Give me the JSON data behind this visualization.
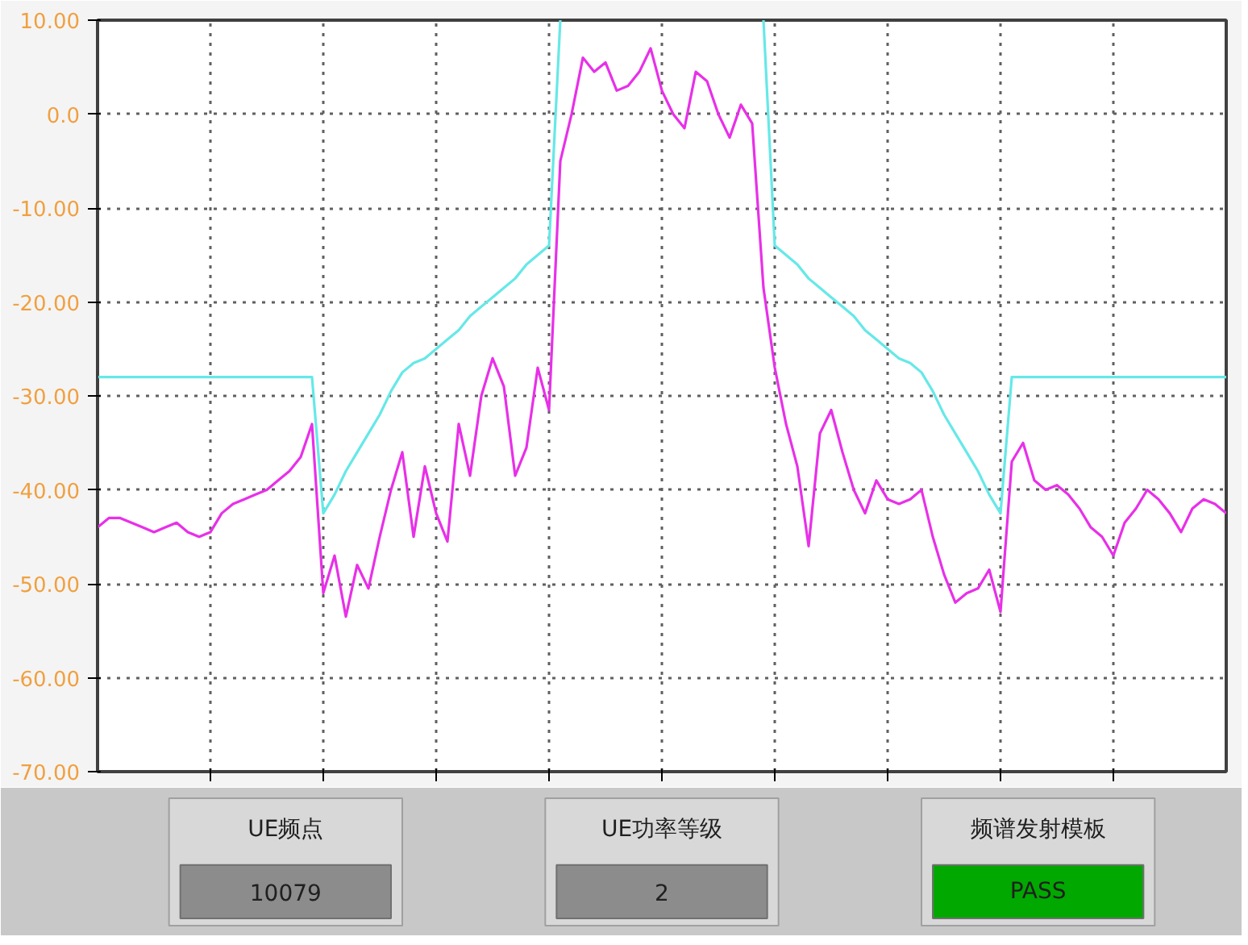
{
  "chart_data": {
    "type": "line",
    "ylim": [
      -70,
      10
    ],
    "grid": true,
    "tick_labels": "y",
    "yticks": [
      {
        "value": 10,
        "label": "10.00"
      },
      {
        "value": 0,
        "label": "0.0"
      },
      {
        "value": -10,
        "label": "-10.00"
      },
      {
        "value": -20,
        "label": "-20.00"
      },
      {
        "value": -30,
        "label": "-30.00"
      },
      {
        "value": -40,
        "label": "-40.00"
      },
      {
        "value": -50,
        "label": "-50.00"
      },
      {
        "value": -60,
        "label": "-60.00"
      },
      {
        "value": -70,
        "label": "-70.00"
      }
    ],
    "categories": [
      null,
      null,
      null,
      null,
      null,
      null,
      null,
      null,
      null,
      null,
      null,
      null,
      null,
      null,
      null,
      null,
      null,
      null,
      null,
      null,
      null,
      null,
      null,
      null,
      null,
      null,
      null,
      null,
      null,
      null,
      null,
      null,
      null,
      null,
      null,
      null,
      null,
      null,
      null,
      null,
      null,
      null,
      null,
      null,
      null,
      null,
      null,
      null,
      null,
      null,
      null,
      null,
      null,
      null,
      null,
      null,
      null,
      null,
      null,
      null,
      null,
      null,
      null,
      null,
      null,
      null,
      null,
      null,
      null,
      null,
      null,
      null,
      null,
      null,
      null,
      null,
      null,
      null,
      null,
      null,
      null,
      null,
      null,
      null,
      null,
      null,
      null,
      null,
      null,
      null,
      null,
      null,
      null,
      null,
      null,
      null,
      null,
      null,
      null,
      null,
      null
    ],
    "series": [
      {
        "color": "#66e8e8",
        "values": [
          -28,
          -28,
          -28,
          -28,
          -28,
          -28,
          -28,
          -28,
          -28,
          -28,
          -28,
          -28,
          -28,
          -28,
          -28,
          -28,
          -28,
          -28,
          -28,
          -28,
          -42.5,
          -40.5,
          -38,
          -36,
          -34,
          -32,
          -29.5,
          -27.5,
          -26.5,
          -26,
          -25,
          -24,
          -23,
          -21.5,
          -20.5,
          -19.5,
          -18.5,
          -17.5,
          -16,
          -15,
          -14,
          10,
          null,
          null,
          null,
          null,
          null,
          null,
          null,
          null,
          null,
          null,
          null,
          null,
          null,
          null,
          null,
          null,
          null,
          10,
          -14,
          -15,
          -16,
          -17.5,
          -18.5,
          -19.5,
          -20.5,
          -21.5,
          -23,
          -24,
          -25,
          -26,
          -26.5,
          -27.5,
          -29.5,
          -32,
          -34,
          -36,
          -38,
          -40.5,
          -42.5,
          -28,
          -28,
          -28,
          -28,
          -28,
          -28,
          -28,
          -28,
          -28,
          -28,
          -28,
          -28,
          -28,
          -28,
          -28,
          -28,
          -28,
          -28,
          -28,
          -28
        ]
      },
      {
        "color": "#e830e8",
        "values": [
          -44,
          -43,
          -43,
          -43.5,
          -44,
          -44.5,
          -44,
          -43.5,
          -44.5,
          -45,
          -44.5,
          -42.5,
          -41.5,
          -41,
          -40.5,
          -40,
          -39,
          -38,
          -36.5,
          -33,
          -51,
          -47,
          -53.5,
          -48,
          -50.5,
          -45,
          -40,
          -36,
          -45,
          -37.5,
          -42.5,
          -45.5,
          -33,
          -38.5,
          -30,
          -26,
          -29,
          -38.5,
          -35.5,
          -27,
          -31.5,
          -5,
          0,
          6,
          4.5,
          5.5,
          2.5,
          3,
          4.5,
          7,
          2.5,
          0,
          -1.5,
          4.5,
          3.5,
          0,
          -2.5,
          1,
          -1,
          -18.5,
          -27,
          -33,
          -37.5,
          -46,
          -34,
          -31.5,
          -36,
          -40,
          -42.5,
          -39,
          -41,
          -41.5,
          -41,
          -40,
          -45,
          -49,
          -52,
          -51,
          -50.5,
          -48.5,
          -53,
          -37,
          -35,
          -39,
          -40,
          -39.5,
          -40.5,
          -42,
          -44,
          -45,
          -47,
          -43.5,
          -42,
          -40,
          -41,
          -42.5,
          -44.5,
          -42,
          -41,
          -41.5,
          -42.5
        ]
      }
    ],
    "annotations": [
      "UE频点",
      "10079",
      "UE功率等级",
      "2",
      "频谱发射模板",
      "PASS"
    ]
  }
}
